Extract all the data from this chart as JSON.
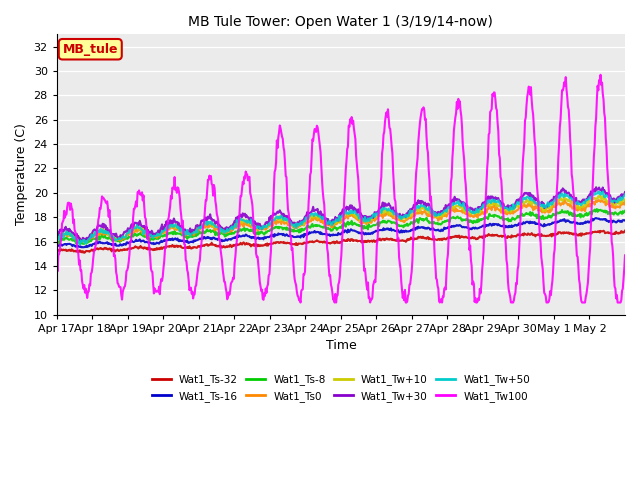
{
  "title": "MB Tule Tower: Open Water 1 (3/19/14-now)",
  "xlabel": "Time",
  "ylabel": "Temperature (C)",
  "ylim": [
    10,
    33
  ],
  "yticks": [
    10,
    12,
    14,
    16,
    18,
    20,
    22,
    24,
    26,
    28,
    30,
    32
  ],
  "x_labels": [
    "Apr 17",
    "Apr 18",
    "Apr 19",
    "Apr 20",
    "Apr 21",
    "Apr 22",
    "Apr 23",
    "Apr 24",
    "Apr 25",
    "Apr 26",
    "Apr 27",
    "Apr 28",
    "Apr 29",
    "Apr 30",
    "May 1",
    "May 2"
  ],
  "box_label": "MB_tule",
  "box_color": "#cc0000",
  "box_bg": "#ffff99",
  "series": [
    {
      "name": "Wat1_Ts-32",
      "color": "#cc0000",
      "lw": 1.5
    },
    {
      "name": "Wat1_Ts-16",
      "color": "#0000cc",
      "lw": 1.5
    },
    {
      "name": "Wat1_Ts-8",
      "color": "#00cc00",
      "lw": 1.5
    },
    {
      "name": "Wat1_Ts0",
      "color": "#ff8800",
      "lw": 1.5
    },
    {
      "name": "Wat1_Tw+10",
      "color": "#cccc00",
      "lw": 1.5
    },
    {
      "name": "Wat1_Tw+30",
      "color": "#8800cc",
      "lw": 1.5
    },
    {
      "name": "Wat1_Tw+50",
      "color": "#00cccc",
      "lw": 1.5
    },
    {
      "name": "Wat1_Tw100",
      "color": "#ff00ff",
      "lw": 1.5
    }
  ]
}
